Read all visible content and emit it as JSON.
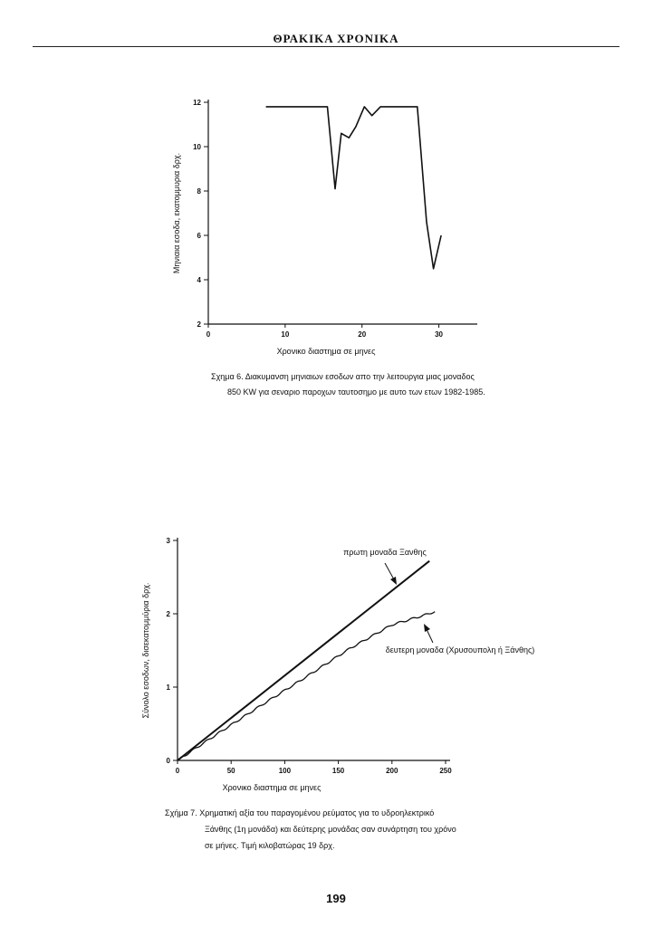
{
  "header": {
    "title": "ΘΡΑΚΙΚΑ ΧΡΟΝΙΚΑ"
  },
  "figure6": {
    "caption_line1": "Σχημα 6. Διακυμανση μηνιαιων εσοδων  απο  την  λειτουργια  μιας μοναδος",
    "caption_line2": "850 KW για σεναριο παροχων ταυτοσημο με αυτο των ετων 1982-1985."
  },
  "figure7": {
    "caption_line1": "Σχήμα 7.  Χρηματική αξία του παραγομένου ρεύματος για το υδροηλεκτρικό",
    "caption_line2": "Ξάνθης (1η μονάδα) και δεύτερης μονάδας σαν συνάρτηση του χρόνο",
    "caption_line3": "σε μήνες. Τιμή κιλοβατώρας 19 δρχ."
  },
  "page_number": "199",
  "chart_data": [
    {
      "type": "line",
      "title": "",
      "xlabel": "Χρονικο διαστημα σε μηνες",
      "ylabel": "Μηνιαια εσοδα, εκατομμυρια δρχ.",
      "xlim": [
        0,
        35
      ],
      "ylim": [
        2,
        12
      ],
      "x_ticks": [
        0,
        10,
        20,
        30
      ],
      "y_ticks": [
        2,
        4,
        6,
        8,
        10,
        12
      ],
      "x_tick_labels": [
        "0",
        "10",
        "20",
        "30"
      ],
      "y_tick_labels": [
        "2",
        "4",
        "6",
        "8",
        "10",
        "12"
      ],
      "grid": false,
      "series": [
        {
          "x": [
            7.5,
            15.5,
            16.5,
            17.3,
            18.3,
            19.2,
            20.3,
            21.3,
            22.4,
            27.2,
            28.4,
            29.3,
            30.3
          ],
          "y": [
            11.8,
            11.8,
            8.1,
            10.6,
            10.4,
            10.9,
            11.8,
            11.4,
            11.8,
            11.8,
            6.6,
            4.5,
            6.0
          ]
        }
      ]
    },
    {
      "type": "line",
      "title": "",
      "xlabel": "Χρονικο διαστημα σε μηνες",
      "ylabel": "Σύνολο εσοδων, δισεκατομμύρια δρχ.",
      "xlim": [
        0,
        250
      ],
      "ylim": [
        0,
        3
      ],
      "x_ticks": [
        0,
        50,
        100,
        150,
        200,
        250
      ],
      "y_ticks": [
        0,
        1,
        2,
        3
      ],
      "x_tick_labels": [
        "0",
        "50",
        "100",
        "150",
        "200",
        "250"
      ],
      "y_tick_labels": [
        "0",
        "1",
        "2",
        "3"
      ],
      "grid": false,
      "annotations": [
        "πρωτη μοναδα Ξανθης",
        "δευτερη μοναδα (Χρυσουπολη ή Ξάνθης)"
      ],
      "series": [
        {
          "x": [
            0,
            235
          ],
          "y": [
            0,
            2.72
          ]
        },
        {
          "x": [
            0,
            40,
            80,
            120,
            160,
            200,
            230,
            240
          ],
          "y": [
            0,
            0.39,
            0.77,
            1.14,
            1.52,
            1.85,
            1.98,
            2.03
          ]
        }
      ]
    }
  ]
}
